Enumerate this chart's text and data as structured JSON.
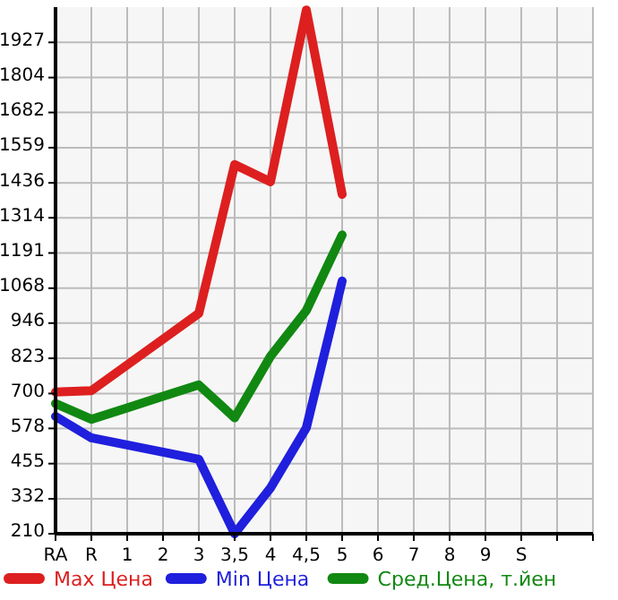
{
  "chart_data": {
    "type": "line",
    "categories": [
      "RA",
      "R",
      "1",
      "2",
      "3",
      "3,5",
      "4",
      "4,5",
      "5",
      "6",
      "7",
      "8",
      "9",
      "S",
      null,
      null
    ],
    "series": [
      {
        "name": "Max Цена",
        "color": "#dd1f1f",
        "values": [
          705,
          710,
          800,
          890,
          980,
          1500,
          1440,
          2040,
          1396,
          null,
          null,
          null,
          null,
          null,
          null,
          null
        ]
      },
      {
        "name": "Min Цена",
        "color": "#1f1fdd",
        "values": [
          620,
          545,
          520,
          495,
          470,
          210,
          370,
          580,
          1093,
          null,
          null,
          null,
          null,
          null,
          null,
          null
        ]
      },
      {
        "name": "Сред.Цена, т.йен",
        "color": "#118811",
        "values": [
          665,
          610,
          650,
          690,
          730,
          615,
          830,
          990,
          1254,
          null,
          null,
          null,
          null,
          null,
          null,
          null
        ]
      }
    ],
    "ylim": [
      210,
      2050
    ],
    "yticks": [
      210,
      332,
      455,
      578,
      700,
      823,
      946,
      1068,
      1191,
      1314,
      1436,
      1559,
      1682,
      1804,
      1927
    ],
    "grid": true,
    "legend": "bottom",
    "line_style": "solid"
  }
}
